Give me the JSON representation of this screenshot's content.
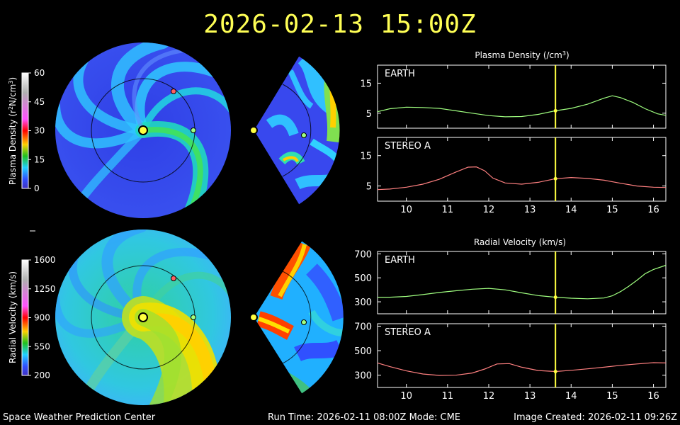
{
  "timestamp": "2026-02-13 15:00Z",
  "footer": {
    "left": "Space Weather Prediction Center",
    "center": "Run Time: 2026-02-11 08:00Z  Mode: CME",
    "right": "Image Created: 2026-02-11 09:26Z"
  },
  "colorbars": [
    {
      "label_main": "Plasma Density (r",
      "label_sup1": "2",
      "label_mid": "N/cm",
      "label_sup2": "3",
      "label_end": ")",
      "ticks": [
        "60",
        "45",
        "30",
        "15",
        "0"
      ],
      "colors": [
        "#ffffff",
        "#c0c0c0",
        "#ff60ff",
        "#ff0000",
        "#ffd000",
        "#20c020",
        "#20c0ff",
        "#3050ff",
        "#4030c0"
      ]
    },
    {
      "label_main": "Radial Velocity (km/s)",
      "ticks": [
        "1600",
        "1250",
        "900",
        "550",
        "200"
      ],
      "colors": [
        "#ffffff",
        "#c0c0c0",
        "#ff60ff",
        "#ff0000",
        "#ffd000",
        "#20c020",
        "#20c0ff",
        "#3050ff",
        "#4030c0"
      ]
    }
  ],
  "chart_data": [
    {
      "type": "line",
      "title_main": "Plasma Density (/cm",
      "title_sup": "3",
      "title_end": ")",
      "xlim": [
        9.3,
        16.3
      ],
      "x_ticks": [
        "10",
        "11",
        "12",
        "13",
        "14",
        "15",
        "16"
      ],
      "current_x": 13.62,
      "panels": [
        {
          "name": "EARTH",
          "color": "#a0ff80",
          "ylim": [
            0,
            21
          ],
          "y_ticks": [
            5,
            15
          ],
          "x": [
            9.3,
            9.6,
            10.0,
            10.4,
            10.8,
            11.2,
            11.6,
            12.0,
            12.4,
            12.8,
            13.2,
            13.62,
            14.0,
            14.4,
            14.8,
            15.0,
            15.2,
            15.5,
            15.8,
            16.1,
            16.3
          ],
          "y": [
            5.5,
            6.5,
            7.0,
            6.9,
            6.6,
            5.8,
            5.0,
            4.2,
            3.8,
            3.9,
            4.6,
            5.8,
            6.6,
            8.0,
            10.0,
            10.8,
            10.2,
            8.6,
            6.5,
            4.8,
            4.3
          ]
        },
        {
          "name": "STEREO A",
          "color": "#ff8080",
          "ylim": [
            0,
            21
          ],
          "y_ticks": [
            5,
            15
          ],
          "x": [
            9.3,
            9.6,
            10.0,
            10.4,
            10.8,
            11.2,
            11.5,
            11.7,
            11.9,
            12.1,
            12.4,
            12.8,
            13.2,
            13.62,
            14.0,
            14.4,
            14.8,
            15.2,
            15.6,
            16.0,
            16.3
          ],
          "y": [
            3.8,
            4.0,
            4.6,
            5.6,
            7.2,
            9.6,
            11.2,
            11.3,
            10.0,
            7.6,
            6.0,
            5.6,
            6.2,
            7.4,
            7.8,
            7.5,
            6.9,
            5.9,
            5.0,
            4.6,
            4.5
          ]
        }
      ]
    },
    {
      "type": "line",
      "title_main": "Radial Velocity (km/s)",
      "title_sup": "",
      "title_end": "",
      "xlim": [
        9.3,
        16.3
      ],
      "x_ticks": [
        "10",
        "11",
        "12",
        "13",
        "14",
        "15",
        "16"
      ],
      "current_x": 13.62,
      "panels": [
        {
          "name": "EARTH",
          "color": "#a0ff80",
          "ylim": [
            200,
            720
          ],
          "y_ticks": [
            300,
            500,
            700
          ],
          "x": [
            9.3,
            9.6,
            10.0,
            10.4,
            10.8,
            11.2,
            11.6,
            12.0,
            12.4,
            12.8,
            13.2,
            13.62,
            14.0,
            14.4,
            14.8,
            15.0,
            15.2,
            15.4,
            15.6,
            15.8,
            16.0,
            16.3
          ],
          "y": [
            338,
            338,
            345,
            360,
            378,
            392,
            405,
            412,
            400,
            375,
            352,
            338,
            330,
            325,
            332,
            350,
            385,
            430,
            480,
            535,
            570,
            605
          ]
        },
        {
          "name": "STEREO A",
          "color": "#ff8080",
          "ylim": [
            200,
            720
          ],
          "y_ticks": [
            300,
            500,
            700
          ],
          "x": [
            9.3,
            9.6,
            10.0,
            10.4,
            10.8,
            11.2,
            11.6,
            11.9,
            12.2,
            12.5,
            12.8,
            13.2,
            13.62,
            14.0,
            14.4,
            14.8,
            15.2,
            15.6,
            16.0,
            16.3
          ],
          "y": [
            400,
            370,
            335,
            310,
            298,
            300,
            318,
            350,
            392,
            395,
            365,
            338,
            330,
            340,
            352,
            365,
            380,
            392,
            402,
            400
          ]
        }
      ]
    }
  ]
}
